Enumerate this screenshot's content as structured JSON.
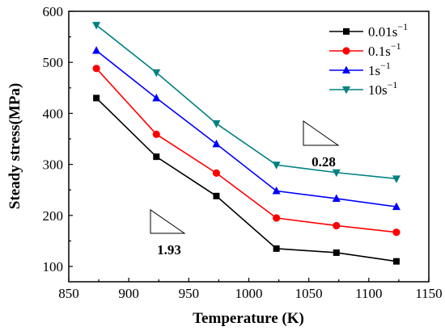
{
  "chart_data": {
    "type": "line",
    "xlabel": "Temperature (K)",
    "ylabel": "Steady stress(MPa)",
    "xlim": [
      850,
      1150
    ],
    "ylim": [
      70,
      600
    ],
    "xticks": [
      850,
      900,
      950,
      1000,
      1050,
      1100,
      1150
    ],
    "yticks": [
      100,
      200,
      300,
      400,
      500,
      600
    ],
    "x": [
      873,
      923,
      973,
      1023,
      1073,
      1123
    ],
    "grid": false,
    "legend_position": "top-right",
    "series": [
      {
        "name": "0.01s",
        "exp": "−1",
        "color": "#000000",
        "marker": "square",
        "values": [
          430,
          315,
          238,
          135,
          127,
          110
        ]
      },
      {
        "name": "0.1s",
        "exp": "−1",
        "color": "#ff0000",
        "marker": "circle",
        "values": [
          488,
          359,
          283,
          195,
          180,
          167
        ]
      },
      {
        "name": "1s",
        "exp": "−1",
        "color": "#0000ff",
        "marker": "triangle-up",
        "values": [
          523,
          430,
          340,
          248,
          233,
          217
        ]
      },
      {
        "name": "10s",
        "exp": "−1",
        "color": "#008080",
        "marker": "triangle-down",
        "values": [
          573,
          480,
          380,
          299,
          284,
          272
        ]
      }
    ],
    "annotations": [
      {
        "text": "0.28"
      },
      {
        "text": "1.93"
      }
    ]
  }
}
